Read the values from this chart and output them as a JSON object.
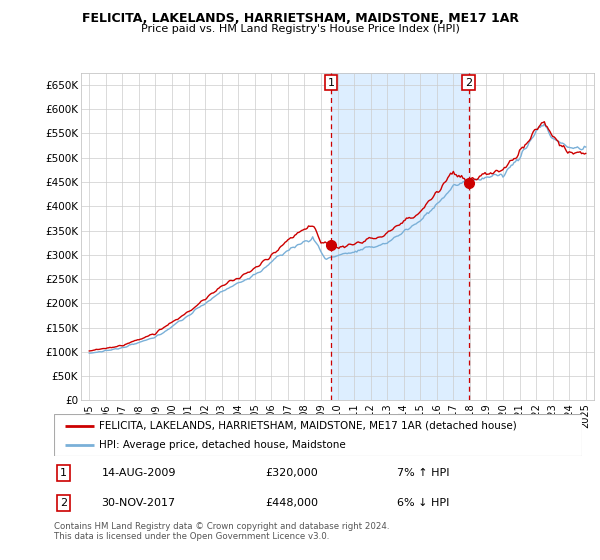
{
  "title": "FELICITA, LAKELANDS, HARRIETSHAM, MAIDSTONE, ME17 1AR",
  "subtitle": "Price paid vs. HM Land Registry's House Price Index (HPI)",
  "ylabel_ticks": [
    "£0",
    "£50K",
    "£100K",
    "£150K",
    "£200K",
    "£250K",
    "£300K",
    "£350K",
    "£400K",
    "£450K",
    "£500K",
    "£550K",
    "£600K",
    "£650K"
  ],
  "ylim": [
    0,
    675000
  ],
  "xlim_start": 1994.5,
  "xlim_end": 2025.5,
  "transaction1_date": 2009.62,
  "transaction1_price": 320000,
  "transaction1_label": "1",
  "transaction2_date": 2017.92,
  "transaction2_price": 448000,
  "transaction2_label": "2",
  "house_color": "#cc0000",
  "hpi_color": "#7ab0d8",
  "shade_color": "#ddeeff",
  "background_color": "#ffffff",
  "plot_bg_color": "#ffffff",
  "grid_color": "#cccccc",
  "legend_house_label": "FELICITA, LAKELANDS, HARRIETSHAM, MAIDSTONE, ME17 1AR (detached house)",
  "legend_hpi_label": "HPI: Average price, detached house, Maidstone",
  "ann1_date": "14-AUG-2009",
  "ann1_price": "£320,000",
  "ann1_hpi": "7% ↑ HPI",
  "ann2_date": "30-NOV-2017",
  "ann2_price": "£448,000",
  "ann2_hpi": "6% ↓ HPI",
  "footer": "Contains HM Land Registry data © Crown copyright and database right 2024.\nThis data is licensed under the Open Government Licence v3.0."
}
